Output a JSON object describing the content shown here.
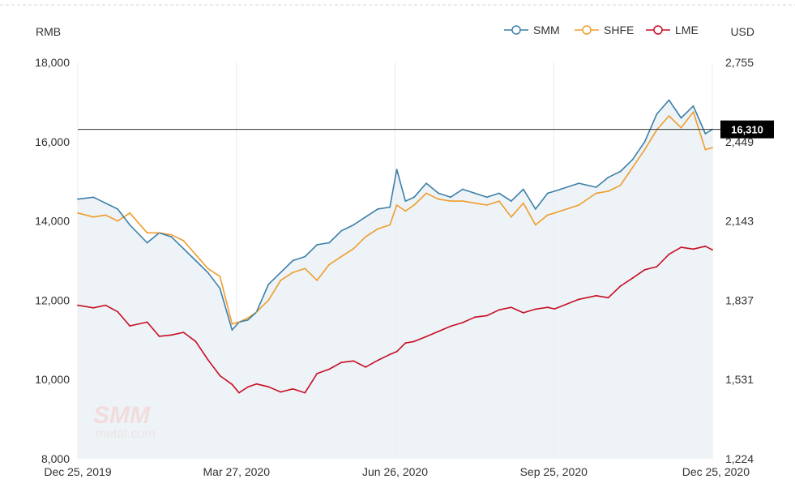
{
  "chart_data": {
    "type": "line",
    "left_axis_unit": "RMB",
    "right_axis_unit": "USD",
    "ylim_left": [
      8000,
      18000
    ],
    "ylim_right": [
      1224,
      2755
    ],
    "yticks_left": [
      "18,000",
      "16,000",
      "14,000",
      "12,000",
      "10,000",
      "8,000"
    ],
    "yticks_right": [
      "2,755",
      "2,449",
      "2,143",
      "1,837",
      "1,531",
      "1,224"
    ],
    "x_ticks": [
      "Dec 25, 2019",
      "Mar 27, 2020",
      "Jun 26, 2020",
      "Sep 25, 2020",
      "Dec 25, 2020"
    ],
    "grid": "vertical",
    "legend_position": "top-right",
    "current_value_label": "16,310",
    "current_value": 16310,
    "series": [
      {
        "name": "SMM",
        "axis": "left",
        "color": "#3d7fa8",
        "x": [
          "2019-12-25",
          "2020-01-03",
          "2020-01-10",
          "2020-01-17",
          "2020-01-24",
          "2020-02-03",
          "2020-02-10",
          "2020-02-17",
          "2020-02-24",
          "2020-03-02",
          "2020-03-09",
          "2020-03-16",
          "2020-03-23",
          "2020-03-27",
          "2020-04-01",
          "2020-04-06",
          "2020-04-13",
          "2020-04-20",
          "2020-04-27",
          "2020-05-04",
          "2020-05-11",
          "2020-05-18",
          "2020-05-25",
          "2020-06-01",
          "2020-06-08",
          "2020-06-15",
          "2020-06-22",
          "2020-06-26",
          "2020-07-01",
          "2020-07-06",
          "2020-07-13",
          "2020-07-20",
          "2020-07-27",
          "2020-08-03",
          "2020-08-10",
          "2020-08-17",
          "2020-08-24",
          "2020-08-31",
          "2020-09-07",
          "2020-09-14",
          "2020-09-21",
          "2020-09-25",
          "2020-10-09",
          "2020-10-19",
          "2020-10-26",
          "2020-11-02",
          "2020-11-09",
          "2020-11-16",
          "2020-11-23",
          "2020-11-30",
          "2020-12-07",
          "2020-12-14",
          "2020-12-21",
          "2020-12-25"
        ],
        "values": [
          14550,
          14600,
          14450,
          14300,
          13900,
          13450,
          13700,
          13600,
          13300,
          13000,
          12700,
          12300,
          11250,
          11450,
          11500,
          11700,
          12400,
          12700,
          13000,
          13100,
          13400,
          13450,
          13750,
          13900,
          14100,
          14300,
          14350,
          15300,
          14500,
          14600,
          14950,
          14700,
          14600,
          14800,
          14700,
          14600,
          14700,
          14500,
          14800,
          14300,
          14700,
          14750,
          14950,
          14850,
          15100,
          15250,
          15550,
          16000,
          16700,
          17050,
          16600,
          16900,
          16200,
          16310
        ]
      },
      {
        "name": "SHFE",
        "axis": "left",
        "color": "#ef9d2c",
        "x": [
          "2019-12-25",
          "2020-01-03",
          "2020-01-10",
          "2020-01-17",
          "2020-01-24",
          "2020-02-03",
          "2020-02-10",
          "2020-02-17",
          "2020-02-24",
          "2020-03-02",
          "2020-03-09",
          "2020-03-16",
          "2020-03-23",
          "2020-03-27",
          "2020-04-01",
          "2020-04-06",
          "2020-04-13",
          "2020-04-20",
          "2020-04-27",
          "2020-05-04",
          "2020-05-11",
          "2020-05-18",
          "2020-05-25",
          "2020-06-01",
          "2020-06-08",
          "2020-06-15",
          "2020-06-22",
          "2020-06-26",
          "2020-07-01",
          "2020-07-06",
          "2020-07-13",
          "2020-07-20",
          "2020-07-27",
          "2020-08-03",
          "2020-08-10",
          "2020-08-17",
          "2020-08-24",
          "2020-08-31",
          "2020-09-07",
          "2020-09-14",
          "2020-09-21",
          "2020-09-25",
          "2020-10-09",
          "2020-10-19",
          "2020-10-26",
          "2020-11-02",
          "2020-11-09",
          "2020-11-16",
          "2020-11-23",
          "2020-11-30",
          "2020-12-07",
          "2020-12-14",
          "2020-12-21",
          "2020-12-25"
        ],
        "values": [
          14200,
          14100,
          14150,
          14000,
          14200,
          13700,
          13700,
          13650,
          13500,
          13150,
          12800,
          12600,
          11400,
          11450,
          11550,
          11700,
          12000,
          12500,
          12700,
          12800,
          12500,
          12900,
          13100,
          13300,
          13600,
          13800,
          13900,
          14400,
          14250,
          14400,
          14700,
          14550,
          14500,
          14500,
          14450,
          14400,
          14500,
          14100,
          14450,
          13900,
          14150,
          14200,
          14400,
          14700,
          14750,
          14900,
          15350,
          15800,
          16300,
          16650,
          16350,
          16750,
          15800,
          15850
        ]
      },
      {
        "name": "LME",
        "axis": "right",
        "color": "#c80e23",
        "x": [
          "2019-12-25",
          "2020-01-03",
          "2020-01-10",
          "2020-01-17",
          "2020-01-24",
          "2020-02-03",
          "2020-02-10",
          "2020-02-17",
          "2020-02-24",
          "2020-03-02",
          "2020-03-09",
          "2020-03-16",
          "2020-03-23",
          "2020-03-27",
          "2020-04-01",
          "2020-04-06",
          "2020-04-13",
          "2020-04-20",
          "2020-04-27",
          "2020-05-04",
          "2020-05-11",
          "2020-05-18",
          "2020-05-25",
          "2020-06-01",
          "2020-06-08",
          "2020-06-15",
          "2020-06-22",
          "2020-06-26",
          "2020-07-01",
          "2020-07-06",
          "2020-07-13",
          "2020-07-20",
          "2020-07-27",
          "2020-08-03",
          "2020-08-10",
          "2020-08-17",
          "2020-08-24",
          "2020-08-31",
          "2020-09-07",
          "2020-09-14",
          "2020-09-21",
          "2020-09-25",
          "2020-10-09",
          "2020-10-19",
          "2020-10-26",
          "2020-11-02",
          "2020-11-09",
          "2020-11-16",
          "2020-11-23",
          "2020-11-30",
          "2020-12-07",
          "2020-12-14",
          "2020-12-21",
          "2020-12-25"
        ],
        "values": [
          1817,
          1807,
          1817,
          1792,
          1737,
          1752,
          1697,
          1702,
          1712,
          1677,
          1607,
          1545,
          1511,
          1479,
          1501,
          1513,
          1502,
          1482,
          1494,
          1479,
          1553,
          1570,
          1596,
          1602,
          1578,
          1604,
          1627,
          1638,
          1671,
          1677,
          1696,
          1716,
          1736,
          1750,
          1771,
          1777,
          1799,
          1809,
          1788,
          1802,
          1809,
          1803,
          1840,
          1854,
          1846,
          1891,
          1922,
          1954,
          1966,
          2014,
          2041,
          2034,
          2045,
          2031
        ]
      }
    ]
  }
}
